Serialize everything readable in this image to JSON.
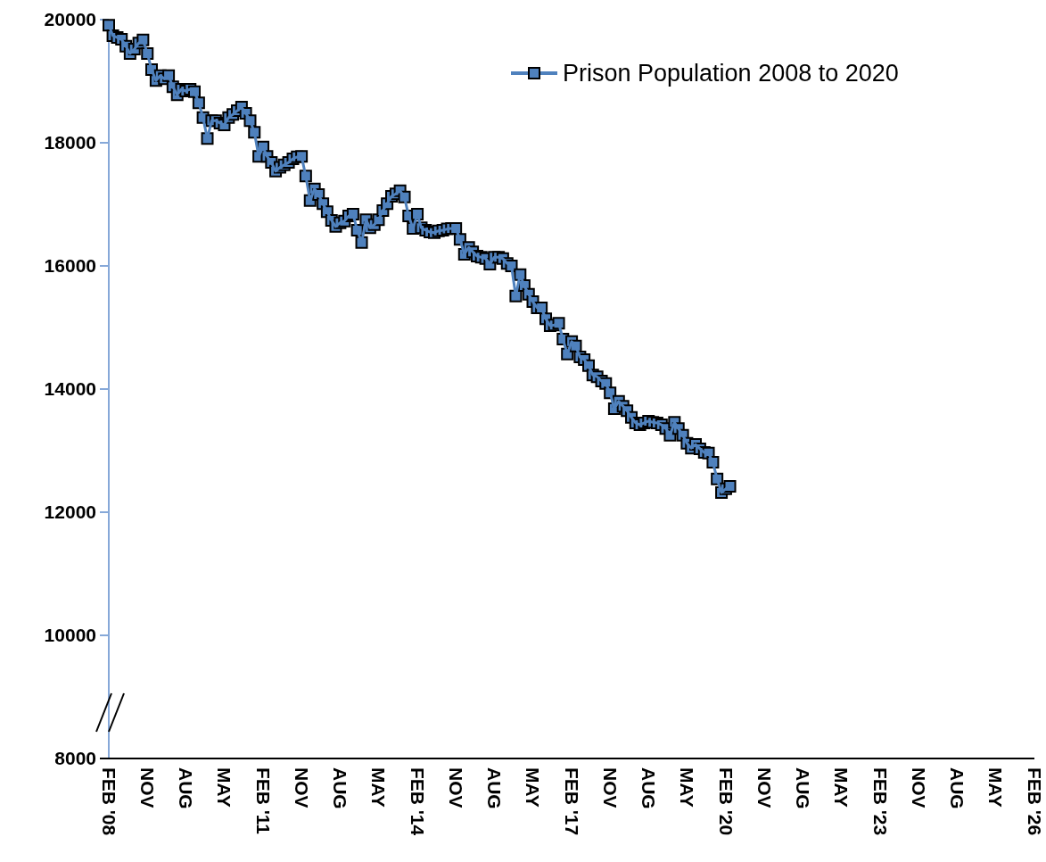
{
  "chart_data": {
    "type": "line",
    "marker": "square",
    "line_style": "solid",
    "legend": "top right",
    "grid": false,
    "x": [
      "2008-02",
      "2008-03",
      "2008-04",
      "2008-05",
      "2008-06",
      "2008-07",
      "2008-08",
      "2008-09",
      "2008-10",
      "2008-11",
      "2008-12",
      "2009-01",
      "2009-02",
      "2009-03",
      "2009-04",
      "2009-05",
      "2009-06",
      "2009-07",
      "2009-08",
      "2009-09",
      "2009-10",
      "2009-11",
      "2009-12",
      "2010-01",
      "2010-02",
      "2010-03",
      "2010-04",
      "2010-05",
      "2010-06",
      "2010-07",
      "2010-08",
      "2010-09",
      "2010-10",
      "2010-11",
      "2010-12",
      "2011-01",
      "2011-02",
      "2011-03",
      "2011-04",
      "2011-05",
      "2011-06",
      "2011-07",
      "2011-08",
      "2011-09",
      "2011-10",
      "2011-11",
      "2011-12",
      "2012-01",
      "2012-02",
      "2012-03",
      "2012-04",
      "2012-05",
      "2012-06",
      "2012-07",
      "2012-08",
      "2012-09",
      "2012-10",
      "2012-11",
      "2012-12",
      "2013-01",
      "2013-02",
      "2013-03",
      "2013-04",
      "2013-05",
      "2013-06",
      "2013-07",
      "2013-08",
      "2013-09",
      "2013-10",
      "2013-11",
      "2013-12",
      "2014-01",
      "2014-02",
      "2014-03",
      "2014-04",
      "2014-05",
      "2014-06",
      "2014-07",
      "2014-08",
      "2014-09",
      "2014-10",
      "2014-11",
      "2014-12",
      "2015-01",
      "2015-02",
      "2015-03",
      "2015-04",
      "2015-05",
      "2015-06",
      "2015-07",
      "2015-08",
      "2015-09",
      "2015-10",
      "2015-11",
      "2015-12",
      "2016-01",
      "2016-02",
      "2016-03",
      "2016-04",
      "2016-05",
      "2016-06",
      "2016-07",
      "2016-08",
      "2016-09",
      "2016-10",
      "2016-11",
      "2016-12",
      "2017-01",
      "2017-02",
      "2017-03",
      "2017-04",
      "2017-05",
      "2017-06",
      "2017-07",
      "2017-08",
      "2017-09",
      "2017-10",
      "2017-11",
      "2017-12",
      "2018-01",
      "2018-02",
      "2018-03",
      "2018-04",
      "2018-05",
      "2018-06",
      "2018-07",
      "2018-08",
      "2018-09",
      "2018-10",
      "2018-11",
      "2018-12",
      "2019-01",
      "2019-02",
      "2019-03",
      "2019-04",
      "2019-05",
      "2019-06",
      "2019-07",
      "2019-08",
      "2019-09",
      "2019-10",
      "2019-11",
      "2019-12",
      "2020-01",
      "2020-02",
      "2020-03"
    ],
    "series": [
      {
        "name": "Prison Population 2008 to 2020",
        "color": "#4f81bd",
        "values": [
          19910,
          19740,
          19710,
          19680,
          19570,
          19450,
          19520,
          19620,
          19670,
          19450,
          19190,
          19010,
          19090,
          19040,
          19090,
          18910,
          18780,
          18870,
          18840,
          18870,
          18830,
          18650,
          18410,
          18070,
          18360,
          18360,
          18320,
          18290,
          18410,
          18460,
          18520,
          18580,
          18480,
          18360,
          18170,
          17780,
          17930,
          17780,
          17680,
          17540,
          17600,
          17640,
          17680,
          17740,
          17770,
          17780,
          17460,
          17060,
          17250,
          17160,
          17010,
          16880,
          16740,
          16640,
          16700,
          16730,
          16810,
          16840,
          16580,
          16380,
          16750,
          16620,
          16670,
          16750,
          16900,
          17010,
          17130,
          17170,
          17220,
          17120,
          16810,
          16610,
          16840,
          16620,
          16580,
          16550,
          16540,
          16570,
          16580,
          16600,
          16610,
          16610,
          16430,
          16190,
          16300,
          16230,
          16160,
          16140,
          16120,
          16030,
          16140,
          16140,
          16120,
          16040,
          16000,
          15510,
          15860,
          15680,
          15540,
          15420,
          15320,
          15320,
          15140,
          15030,
          15040,
          15070,
          14810,
          14570,
          14770,
          14700,
          14520,
          14480,
          14380,
          14230,
          14200,
          14130,
          14090,
          13940,
          13680,
          13800,
          13720,
          13650,
          13540,
          13450,
          13420,
          13450,
          13480,
          13460,
          13450,
          13420,
          13360,
          13250,
          13460,
          13360,
          13250,
          13120,
          13040,
          13100,
          13030,
          12970,
          12960,
          12810,
          12540,
          12320,
          12380,
          12420
        ]
      }
    ],
    "xlim": [
      "2008-02",
      "2026-02"
    ],
    "xticks": [
      {
        "value": "2008-02",
        "label": "FEB '08"
      },
      {
        "value": "2008-11",
        "label": "NOV"
      },
      {
        "value": "2009-08",
        "label": "AUG"
      },
      {
        "value": "2010-05",
        "label": "MAY"
      },
      {
        "value": "2011-02",
        "label": "FEB '11"
      },
      {
        "value": "2011-11",
        "label": "NOV"
      },
      {
        "value": "2012-08",
        "label": "AUG"
      },
      {
        "value": "2013-05",
        "label": "MAY"
      },
      {
        "value": "2014-02",
        "label": "FEB '14"
      },
      {
        "value": "2014-11",
        "label": "NOV"
      },
      {
        "value": "2015-08",
        "label": "AUG"
      },
      {
        "value": "2016-05",
        "label": "MAY"
      },
      {
        "value": "2017-02",
        "label": "FEB '17"
      },
      {
        "value": "2017-11",
        "label": "NOV"
      },
      {
        "value": "2018-08",
        "label": "AUG"
      },
      {
        "value": "2019-05",
        "label": "MAY"
      },
      {
        "value": "2020-02",
        "label": "FEB '20"
      },
      {
        "value": "2020-11",
        "label": "NOV"
      },
      {
        "value": "2021-08",
        "label": "AUG"
      },
      {
        "value": "2022-05",
        "label": "MAY"
      },
      {
        "value": "2023-02",
        "label": "FEB '23"
      },
      {
        "value": "2023-11",
        "label": "NOV"
      },
      {
        "value": "2024-08",
        "label": "AUG"
      },
      {
        "value": "2025-05",
        "label": "MAY"
      },
      {
        "value": "2026-02",
        "label": "FEB '26"
      }
    ],
    "ylim": [
      8000,
      20000
    ],
    "yticks": [
      8000,
      10000,
      12000,
      14000,
      16000,
      18000,
      20000
    ]
  }
}
